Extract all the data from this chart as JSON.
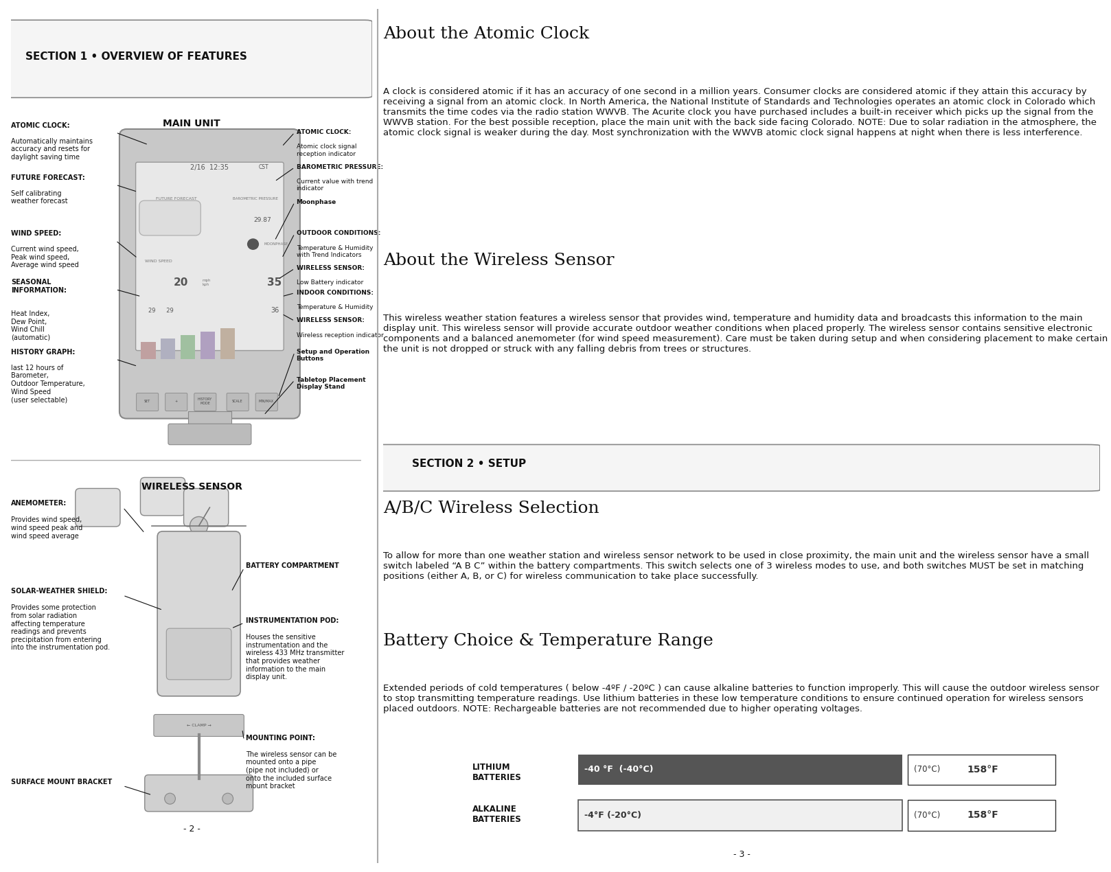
{
  "bg_color": "#ffffff",
  "left_panel_bg": "#ffffff",
  "right_panel_bg": "#ffffff",
  "divider_color": "#cccccc",
  "section_box_color": "#cccccc",
  "section_box_fill": "#f0f0f0",
  "section1_title": "SECTION 1 • OVERVIEW OF FEATURES",
  "section2_title": "SECTION 2 • SETUP",
  "main_unit_title": "MAIN UNIT",
  "wireless_sensor_title": "WIRELESS SENSOR",
  "left_labels_top": [
    {
      "bold": "ATOMIC CLOCK:",
      "normal": "Automatically maintains\naccuracy and resets for\ndaylight saving time"
    },
    {
      "bold": "FUTURE FORECAST:",
      "normal": "Self calibrating\nweather forecast"
    },
    {
      "bold": "WIND SPEED:",
      "normal": "Current wind speed,\nPeak wind speed,\nAverage wind speed"
    },
    {
      "bold": "SEASONAL\nINFORMATION:",
      "normal": "Heat Index,\nDew Point,\nWind Chill\n(automatic)"
    },
    {
      "bold": "HISTORY GRAPH:",
      "normal": "last 12 hours of\nBarometer,\nOutdoor Temperature,\nWind Speed\n(user selectable)"
    }
  ],
  "right_labels_top": [
    {
      "bold": "ATOMIC CLOCK:",
      "normal": "Atomic clock signal\nreception indicator"
    },
    {
      "bold": "BAROMETRIC PRESSURE:",
      "normal": "Current value with trend\nindicator"
    },
    {
      "bold": "Moonphase",
      "normal": ""
    },
    {
      "bold": "OUTDOOR CONDITIONS:",
      "normal": "Temperature & Humidity\nwith Trend Indicators"
    },
    {
      "bold": "WIRELESS SENSOR:",
      "normal": "Low Battery indicator"
    },
    {
      "bold": "INDOOR CONDITIONS:",
      "normal": "Temperature & Humidity"
    },
    {
      "bold": "WIRELESS SENSOR:",
      "normal": "Wireless reception indicator"
    },
    {
      "bold": "Setup and Operation\nButtons",
      "normal": ""
    },
    {
      "bold": "Tabletop Placement\nDisplay Stand",
      "normal": ""
    }
  ],
  "left_labels_bottom": [
    {
      "bold": "ANEMOMETER:",
      "normal": "Provides wind speed,\nwind speed peak and\nwind speed average"
    },
    {
      "bold": "SOLAR-WEATHER SHIELD:",
      "normal": "Provides some protection\nfrom solar radiation\naffecting temperature\nreadings and prevents\nprecipitation from entering\ninto the instrumentation pod."
    },
    {
      "bold": "SURFACE MOUNT BRACKET",
      "normal": ""
    }
  ],
  "right_labels_bottom": [
    {
      "bold": "BATTERY COMPARTMENT",
      "normal": ""
    },
    {
      "bold": "INSTRUMENTATION POD:",
      "normal": "Houses the sensitive\ninstrumentation and the\nwireless 433 MHz transmitter\nthat provides weather\ninformation to the main\ndisplay unit."
    },
    {
      "bold": "MOUNTING POINT:",
      "normal": "The wireless sensor can be\nmounted onto a pipe\n(pipe not included) or\nonto the included surface\nmount bracket"
    }
  ],
  "page_numbers_left": "- 2 -",
  "page_numbers_right": "- 3 -",
  "about_atomic_clock_title": "About the Atomic Clock",
  "about_atomic_clock_text": "A clock is considered atomic if it has an accuracy of one second in a million years. Consumer clocks are considered atomic if they attain this accuracy by receiving a signal from an atomic clock. In North America, the National Institute of Standards and Technologies operates an atomic clock in Colorado which transmits the time codes via the radio station WWVB. The Acurite clock you have purchased includes a built-in receiver which picks up the signal from the WWVB station. For the best possible reception, place the main unit with the back side facing Colorado. NOTE: Due to solar radiation in the atmosphere, the atomic clock signal is weaker during the day. Most synchronization with the WWVB atomic clock signal happens at night when there is less interference.",
  "about_wireless_title": "About the Wireless Sensor",
  "about_wireless_text": "This wireless weather station features a wireless sensor that provides wind, temperature and humidity data and broadcasts this information to the main display unit. This wireless sensor will provide accurate outdoor weather conditions when placed properly. The wireless sensor contains sensitive electronic components and a balanced anemometer (for wind speed measurement). Care must be taken during setup and when considering placement to make certain the unit is not dropped or struck with any falling debris from trees or structures.",
  "abc_title": "A/B/C Wireless Selection",
  "abc_text": "To allow for more than one weather station and wireless sensor network to be used in close proximity, the main unit and the wireless sensor have a small switch labeled “A B C” within the battery compartments. This switch selects one of 3 wireless modes to use, and both switches MUST be set in matching positions (either A, B, or C) for wireless communication to take place successfully.",
  "battery_title": "Battery Choice & Temperature Range",
  "battery_text": "Extended periods of cold temperatures ( below -4ºF / -20ºC ) can cause alkaline batteries to function improperly. This will cause the outdoor wireless sensor to stop transmitting temperature readings. Use lithium batteries in these low temperature conditions to ensure continued operation for wireless sensors placed outdoors. NOTE: Rechargeable batteries are not recommended due to higher operating voltages.",
  "lithium_label": "LITHIUM\nBATTERIES",
  "alkaline_label": "ALKALINE\nBATTERIES",
  "lithium_range": "-40 °F  (-40°C)",
  "alkaline_range": "-4°F (-20°C)",
  "max_temp": "(70°C)  158°F",
  "lithium_bar_color": "#555555",
  "alkaline_bar_color": "#cccccc",
  "text_color": "#000000",
  "callout_line_color": "#000000"
}
